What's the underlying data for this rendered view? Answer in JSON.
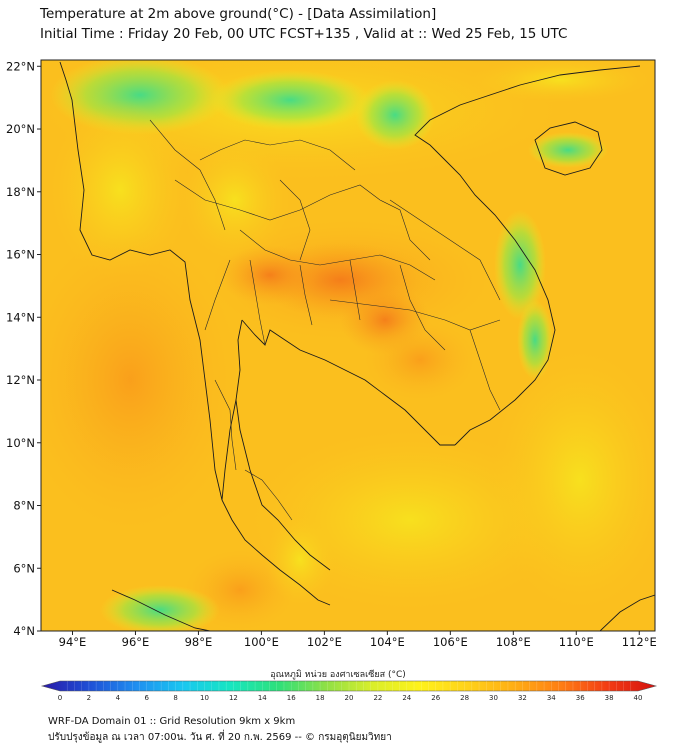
{
  "title": {
    "line1": "Temperature at 2m above ground(°C) - [Data Assimilation]",
    "line2": "Initial Time : Friday 20 Feb, 00 UTC FCST+135 , Valid at :: Wed 25 Feb, 15 UTC"
  },
  "map": {
    "lon_labels": [
      "94°E",
      "96°E",
      "98°E",
      "100°E",
      "102°E",
      "104°E",
      "106°E",
      "108°E",
      "110°E",
      "112°E"
    ],
    "lat_labels": [
      "22°N",
      "20°N",
      "18°N",
      "16°N",
      "14°N",
      "12°N",
      "10°N",
      "8°N",
      "6°N",
      "4°N"
    ],
    "lon_range": [
      93,
      112.5
    ],
    "lat_range": [
      4,
      22.2
    ]
  },
  "colorbar": {
    "label": "อุณหภูมิ หน่วย องศาเซลเซียส (°C)",
    "ticks": [
      "0",
      "2",
      "4",
      "6",
      "8",
      "10",
      "12",
      "14",
      "16",
      "18",
      "20",
      "22",
      "24",
      "26",
      "28",
      "30",
      "32",
      "34",
      "36",
      "38",
      "40"
    ],
    "colors": [
      "#2a1aa8",
      "#1f4fd6",
      "#1f8ff0",
      "#19c8f0",
      "#17e6c0",
      "#2ee07a",
      "#8fe046",
      "#d9ee2a",
      "#fff21a",
      "#ffd21a",
      "#ffae14",
      "#ff7d14",
      "#f23a14",
      "#d4120f"
    ]
  },
  "footer": {
    "line1": "WRF-DA Domain 01 :: Grid Resolution 9km x 9km",
    "line2": "ปรับปรุงข้อมูล ณ เวลา 07:00น. วัน ศ. ที่ 20 ก.พ. 2569 -- © กรมอุตุนิยมวิทยา"
  }
}
